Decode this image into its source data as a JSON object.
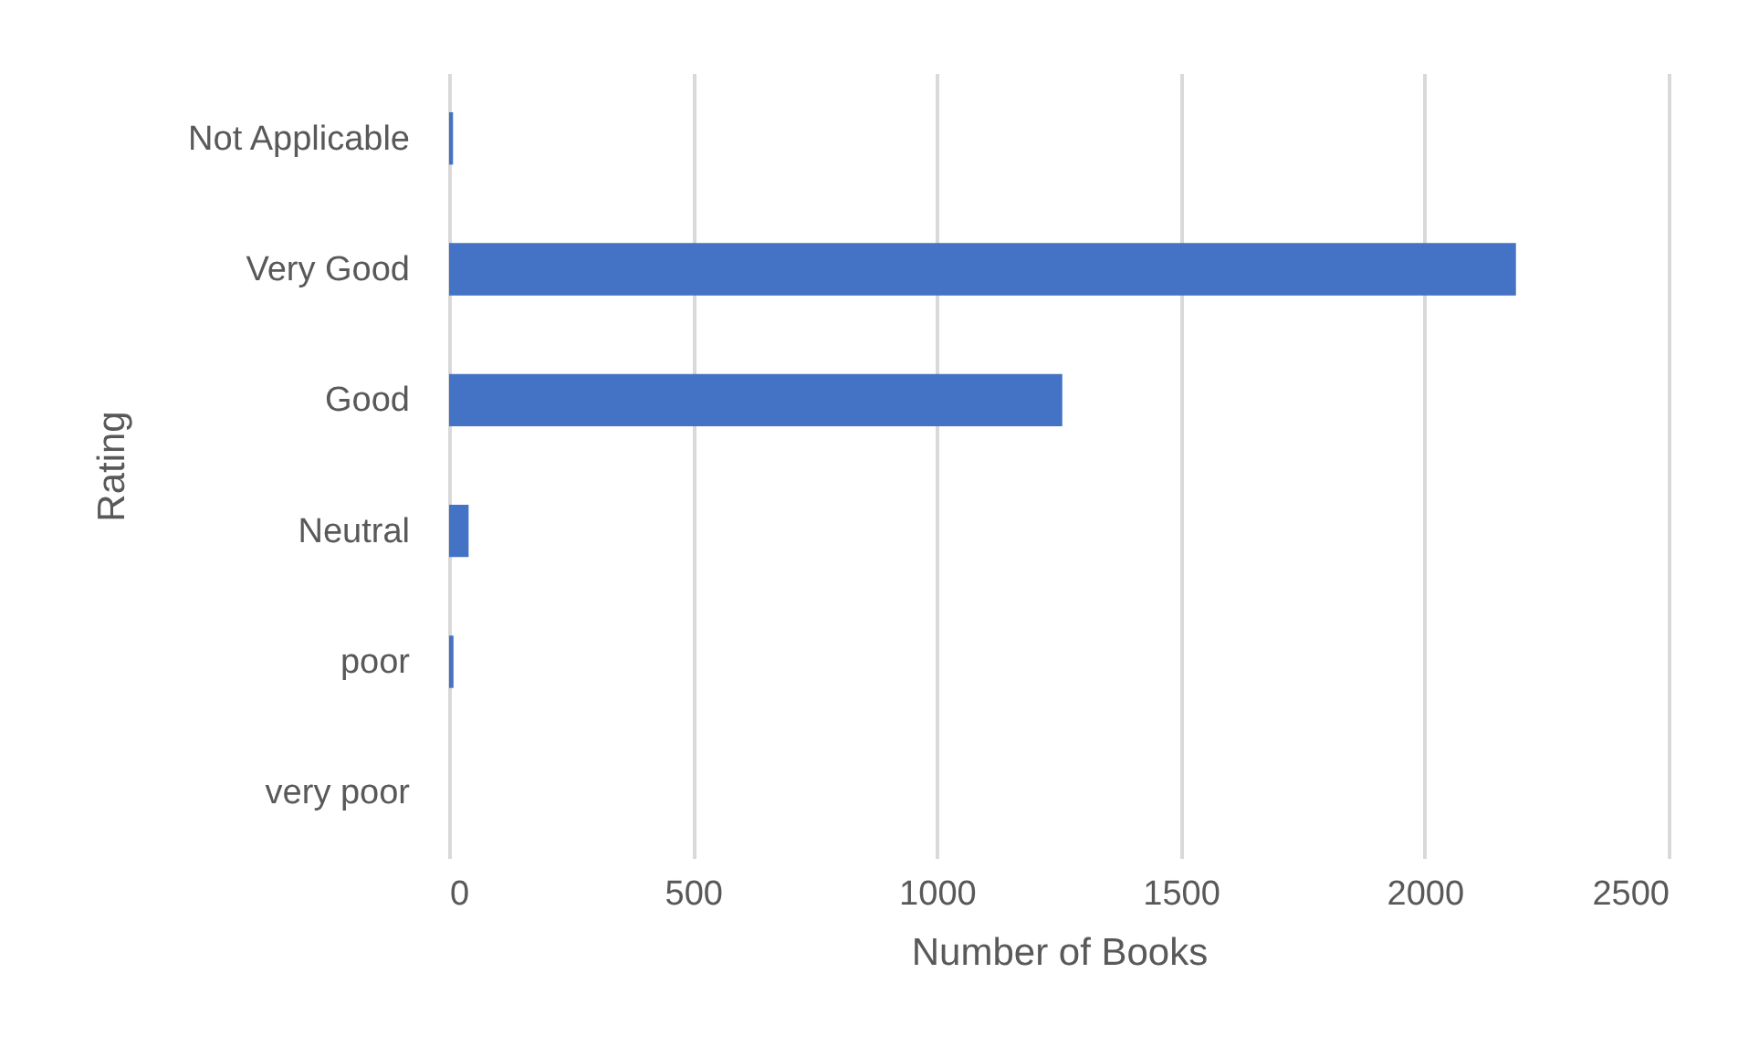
{
  "chart_data": {
    "type": "bar",
    "orientation": "horizontal",
    "xlabel": "Number of Books",
    "ylabel": "Rating",
    "categories": [
      "Not Applicable",
      "Very Good",
      "Good",
      "Neutral",
      "poor",
      "very poor"
    ],
    "values": [
      8,
      2187,
      1257,
      40,
      9,
      0
    ],
    "color": "#4472c4",
    "xlim": [
      0,
      2500
    ],
    "xticks": [
      0,
      500,
      1000,
      1500,
      2000,
      2500
    ],
    "grid": "x"
  }
}
